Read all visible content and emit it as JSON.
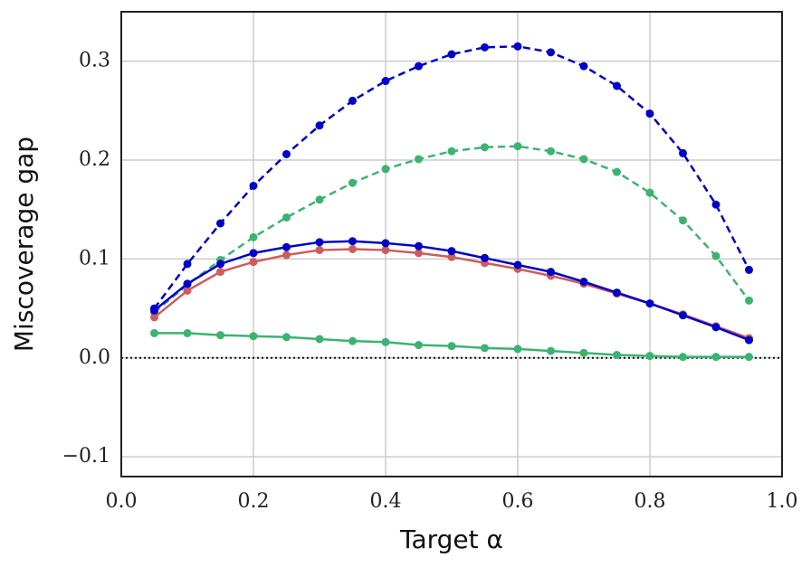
{
  "chart_data": {
    "type": "line",
    "xlabel": "Target α",
    "ylabel": "Miscoverage gap",
    "x": [
      0.05,
      0.1,
      0.15,
      0.2,
      0.25,
      0.3,
      0.35,
      0.4,
      0.45,
      0.5,
      0.55,
      0.6,
      0.65,
      0.7,
      0.75,
      0.8,
      0.85,
      0.9,
      0.95
    ],
    "series": [
      {
        "color": "#0000c8",
        "dashed": true,
        "values": [
          0.05,
          0.095,
          0.136,
          0.174,
          0.206,
          0.235,
          0.26,
          0.28,
          0.295,
          0.307,
          0.314,
          0.315,
          0.309,
          0.295,
          0.275,
          0.247,
          0.207,
          0.155,
          0.089
        ]
      },
      {
        "color": "#3cb371",
        "dashed": true,
        "values": [
          0.046,
          0.074,
          0.099,
          0.122,
          0.142,
          0.16,
          0.177,
          0.191,
          0.201,
          0.209,
          0.213,
          0.214,
          0.209,
          0.201,
          0.188,
          0.167,
          0.139,
          0.103,
          0.058
        ]
      },
      {
        "color": "#cd5c5c",
        "dashed": false,
        "values": [
          0.041,
          0.068,
          0.087,
          0.097,
          0.104,
          0.109,
          0.11,
          0.109,
          0.106,
          0.102,
          0.096,
          0.09,
          0.083,
          0.075,
          0.065,
          0.055,
          0.044,
          0.032,
          0.02
        ]
      },
      {
        "color": "#0000c8",
        "dashed": false,
        "values": [
          0.048,
          0.075,
          0.095,
          0.106,
          0.112,
          0.117,
          0.118,
          0.116,
          0.113,
          0.108,
          0.101,
          0.094,
          0.087,
          0.077,
          0.066,
          0.055,
          0.043,
          0.031,
          0.018
        ]
      },
      {
        "color": "#3cb371",
        "dashed": false,
        "values": [
          0.025,
          0.025,
          0.023,
          0.022,
          0.021,
          0.019,
          0.017,
          0.016,
          0.013,
          0.012,
          0.01,
          0.009,
          0.007,
          0.005,
          0.003,
          0.002,
          0.001,
          0.001,
          0.001
        ]
      }
    ],
    "hline": 0,
    "xlim": [
      0,
      1
    ],
    "xticks": [
      {
        "value": 0,
        "label": "0.0"
      },
      0.2,
      0.4,
      0.6,
      0.8,
      {
        "value": 1,
        "label": "1.0"
      }
    ],
    "ylim": [
      -0.12,
      0.35
    ],
    "yticks": [
      {
        "value": -0.1,
        "label": "−0.1"
      },
      {
        "value": 0,
        "label": "0.0"
      },
      0.1,
      0.2,
      0.3
    ],
    "grid": true
  }
}
